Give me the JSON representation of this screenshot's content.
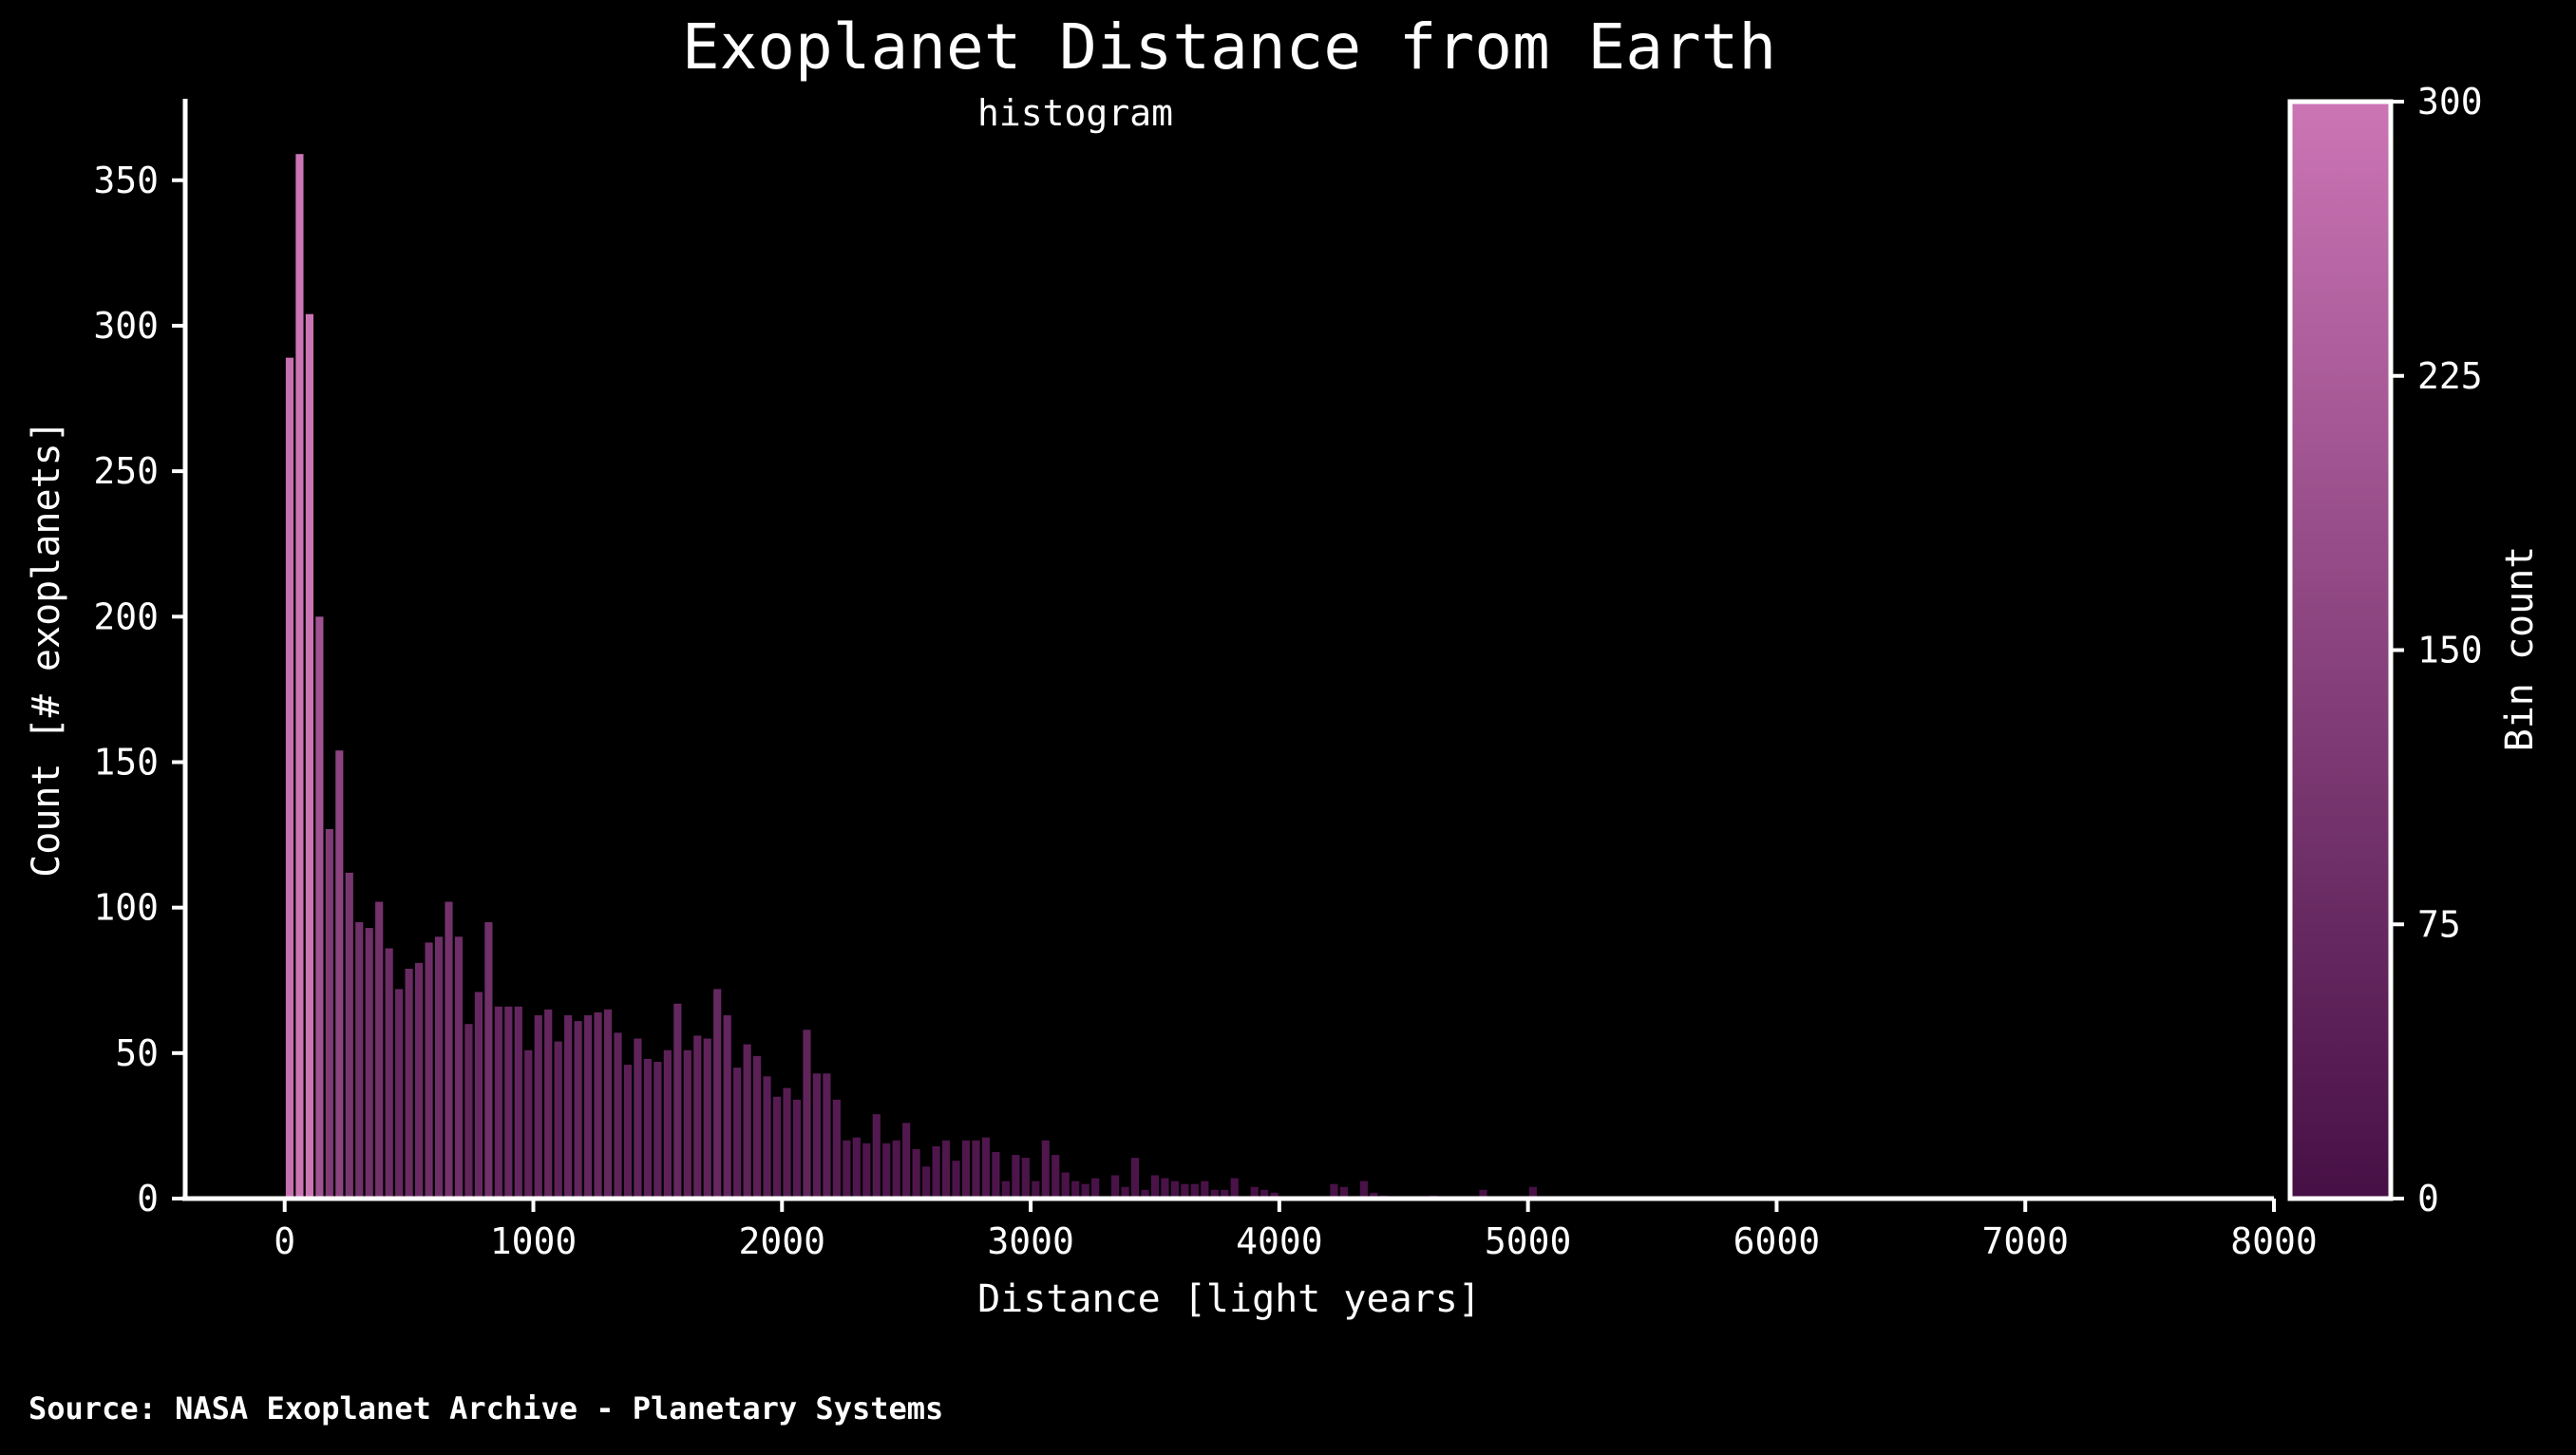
{
  "chart_data": {
    "type": "bar",
    "title": "Exoplanet Distance from Earth",
    "subtitle": "histogram",
    "xlabel": "Distance [light years]",
    "ylabel": "Count [# exoplanets]",
    "xlim": [
      -400,
      8000
    ],
    "ylim": [
      0,
      378
    ],
    "xticks": [
      0,
      1000,
      2000,
      3000,
      4000,
      5000,
      6000,
      7000,
      8000
    ],
    "yticks": [
      0,
      50,
      100,
      150,
      200,
      250,
      300,
      350
    ],
    "bin_start": 20,
    "bin_width": 40,
    "counts": [
      289,
      359,
      304,
      200,
      127,
      154,
      112,
      95,
      93,
      102,
      86,
      72,
      79,
      81,
      88,
      90,
      102,
      90,
      60,
      71,
      95,
      66,
      66,
      66,
      51,
      63,
      65,
      54,
      63,
      61,
      63,
      64,
      65,
      57,
      46,
      55,
      48,
      47,
      51,
      67,
      51,
      56,
      55,
      72,
      63,
      45,
      53,
      49,
      42,
      35,
      38,
      34,
      58,
      43,
      43,
      34,
      20,
      21,
      19,
      29,
      19,
      20,
      26,
      17,
      11,
      18,
      20,
      13,
      20,
      20,
      21,
      16,
      6,
      15,
      14,
      6,
      20,
      15,
      9,
      6,
      5,
      7,
      0,
      8,
      4,
      14,
      3,
      8,
      7,
      6,
      5,
      5,
      6,
      3,
      3,
      7,
      0,
      4,
      3,
      2,
      0,
      0,
      0,
      0,
      0,
      5,
      4,
      0,
      6,
      2,
      1,
      0,
      0,
      0,
      0,
      1,
      0,
      0,
      0,
      0,
      3,
      0,
      0,
      0,
      0,
      4,
      0
    ],
    "colorbar": {
      "label": "Bin count",
      "range": [
        0,
        300
      ],
      "ticks": [
        0,
        75,
        150,
        225,
        300
      ],
      "color_low": "#461045",
      "color_high": "#cc75b5"
    },
    "grid": false,
    "legend": "none"
  },
  "source_note": "Source: NASA Exoplanet Archive - Planetary Systems"
}
